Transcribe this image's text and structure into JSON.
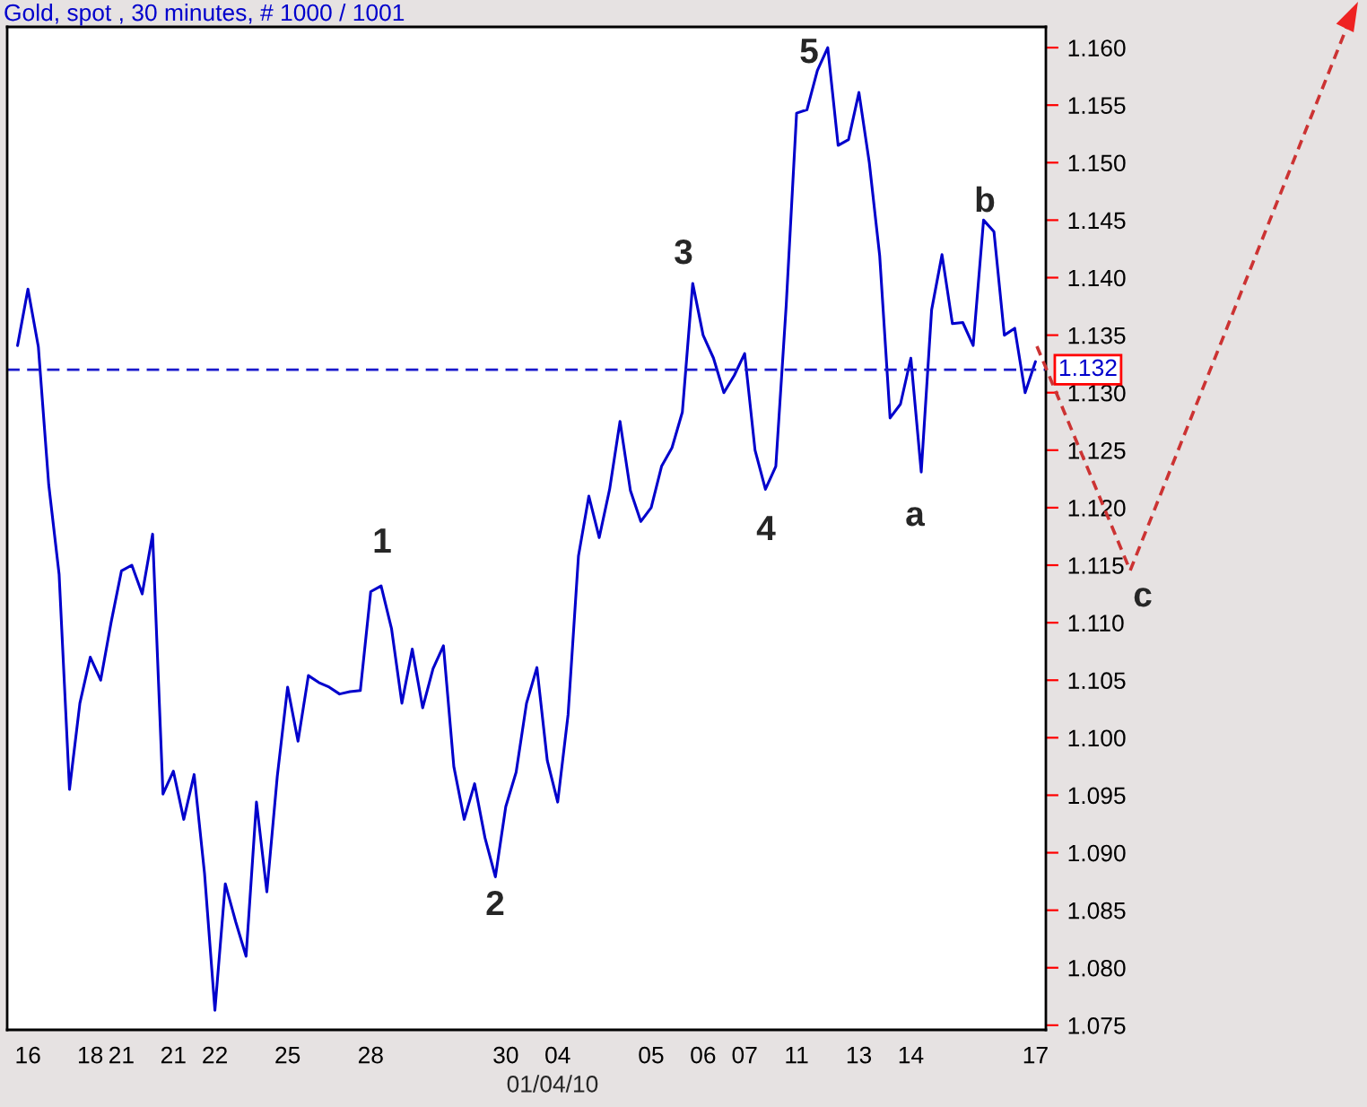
{
  "chart_data": {
    "type": "line",
    "title": "Gold, spot , 30 minutes, # 1000 / 1001",
    "xlabel": "01/04/10",
    "categories": [
      null,
      "16",
      null,
      null,
      null,
      null,
      null,
      "18",
      null,
      null,
      "21",
      null,
      null,
      null,
      null,
      "21",
      null,
      null,
      null,
      "22",
      null,
      null,
      null,
      null,
      null,
      null,
      "25",
      null,
      null,
      null,
      null,
      null,
      null,
      null,
      "28",
      null,
      null,
      null,
      null,
      null,
      null,
      null,
      null,
      null,
      null,
      null,
      null,
      "30",
      null,
      null,
      null,
      null,
      "04",
      null,
      null,
      null,
      null,
      null,
      null,
      null,
      null,
      "05",
      null,
      null,
      null,
      null,
      "06",
      null,
      null,
      null,
      "07",
      null,
      null,
      null,
      null,
      "11",
      null,
      null,
      null,
      null,
      null,
      "13",
      null,
      null,
      null,
      null,
      "14",
      null,
      null,
      null,
      null,
      null,
      null,
      null,
      null,
      null,
      null,
      null,
      "17"
    ],
    "series": [
      {
        "color": "#0000cc",
        "values": [
          1.1341,
          1.139,
          1.134,
          1.122,
          1.1142,
          1.0955,
          1.103,
          1.107,
          1.105,
          1.11,
          1.1145,
          1.115,
          1.1125,
          1.1177,
          1.0951,
          1.0971,
          1.0929,
          1.0968,
          1.0882,
          1.0763,
          1.0873,
          1.084,
          1.081,
          1.0944,
          1.0866,
          1.0966,
          1.1044,
          1.0997,
          1.1054,
          1.1048,
          1.1044,
          1.1038,
          1.104,
          1.1041,
          1.1127,
          1.1132,
          1.1095,
          1.103,
          1.1077,
          1.1026,
          1.106,
          1.108,
          1.0975,
          1.0929,
          1.096,
          1.0913,
          1.0879,
          1.094,
          1.097,
          1.103,
          1.1061,
          1.098,
          1.0944,
          1.102,
          1.1158,
          1.121,
          1.1174,
          1.1216,
          1.1275,
          1.1215,
          1.1188,
          1.12,
          1.1236,
          1.1252,
          1.1283,
          1.1395,
          1.135,
          1.133,
          1.13,
          1.1315,
          1.1334,
          1.125,
          1.1216,
          1.1236,
          1.1376,
          1.1543,
          1.1546,
          1.158,
          1.16,
          1.1515,
          1.152,
          1.1561,
          1.15,
          1.1419,
          1.1278,
          1.129,
          1.133,
          1.1231,
          1.1372,
          1.142,
          1.136,
          1.1361,
          1.1341,
          1.145,
          1.144,
          1.135,
          1.1356,
          1.13,
          1.1327
        ]
      }
    ],
    "ylim": [
      1.0746,
      1.1618
    ],
    "yticks": [
      {
        "value": 1.075,
        "label": "1.075"
      },
      {
        "value": 1.08,
        "label": "1.080"
      },
      {
        "value": 1.085,
        "label": "1.085"
      },
      {
        "value": 1.09,
        "label": "1.090"
      },
      {
        "value": 1.095,
        "label": "1.095"
      },
      {
        "value": 1.1,
        "label": "1.100"
      },
      {
        "value": 1.105,
        "label": "1.105"
      },
      {
        "value": 1.11,
        "label": "1.110"
      },
      {
        "value": 1.115,
        "label": "1.115"
      },
      {
        "value": 1.12,
        "label": "1.120"
      },
      {
        "value": 1.125,
        "label": "1.125"
      },
      {
        "value": 1.13,
        "label": "1.130"
      },
      {
        "value": 1.135,
        "label": "1.135"
      },
      {
        "value": 1.14,
        "label": "1.140"
      },
      {
        "value": 1.145,
        "label": "1.145"
      },
      {
        "value": 1.15,
        "label": "1.150"
      },
      {
        "value": 1.155,
        "label": "1.155"
      },
      {
        "value": 1.16,
        "label": "1.160"
      }
    ],
    "ref_lines": [
      {
        "axis": "y",
        "value": 1.132,
        "label": "1.132",
        "color": "#1a1acc",
        "line_style": "dashed"
      }
    ],
    "annotations": [
      "1",
      "2",
      "3",
      "4",
      "5",
      "a",
      "b",
      "c"
    ],
    "grid": false
  }
}
